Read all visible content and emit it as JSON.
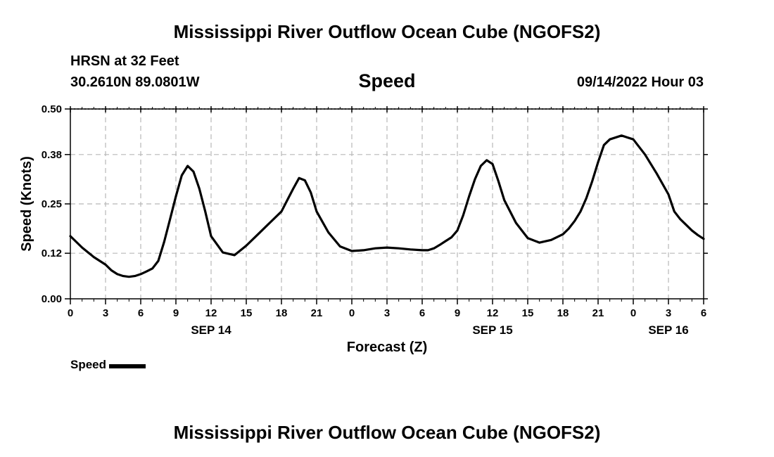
{
  "header": {
    "title": "Mississippi River Outflow Ocean Cube (NGOFS2)",
    "station": "HRSN at 32 Feet",
    "coordinates": "30.2610N  89.0801W",
    "timestamp": "09/14/2022 Hour 03"
  },
  "legend": {
    "label": "Speed"
  },
  "footer": {
    "title": "Mississippi River Outflow Ocean Cube (NGOFS2)"
  },
  "chart_data": {
    "type": "line",
    "title": "Speed",
    "xlabel": "Forecast (Z)",
    "ylabel": "Speed (Knots)",
    "ylim": [
      0,
      0.5
    ],
    "xlim": [
      0,
      54
    ],
    "y_ticks": [
      0.0,
      0.12,
      0.25,
      0.38,
      0.5
    ],
    "y_tick_labels": [
      "0.00",
      "0.12",
      "0.25",
      "0.38",
      "0.50"
    ],
    "x_ticks": [
      0,
      3,
      6,
      9,
      12,
      15,
      18,
      21,
      24,
      27,
      30,
      33,
      36,
      39,
      42,
      45,
      48,
      51,
      54
    ],
    "x_tick_labels": [
      "0",
      "3",
      "6",
      "9",
      "12",
      "15",
      "18",
      "21",
      "0",
      "3",
      "6",
      "9",
      "12",
      "15",
      "18",
      "21",
      "0",
      "3",
      "6"
    ],
    "date_labels": [
      {
        "x": 12,
        "label": "SEP 14"
      },
      {
        "x": 36,
        "label": "SEP 15"
      },
      {
        "x": 51,
        "label": "SEP 16"
      }
    ],
    "grid": true,
    "series": [
      {
        "name": "Speed",
        "x": [
          0,
          1,
          2,
          3,
          3.5,
          4,
          4.5,
          5,
          5.5,
          6,
          6.5,
          7,
          7.5,
          8,
          8.5,
          9,
          9.5,
          10,
          10.5,
          11,
          11.5,
          12,
          13,
          14,
          15,
          16,
          17,
          18,
          18.5,
          19,
          19.5,
          20,
          20.5,
          21,
          22,
          23,
          24,
          25,
          26,
          27,
          28,
          29,
          30,
          30.5,
          31,
          31.5,
          32,
          32.5,
          33,
          33.5,
          34,
          34.5,
          35,
          35.5,
          36,
          36.5,
          37,
          38,
          39,
          40,
          41,
          42,
          42.5,
          43,
          43.5,
          44,
          44.5,
          45,
          45.5,
          46,
          47,
          48,
          49,
          50,
          51,
          51.5,
          52,
          52.5,
          53,
          53.5,
          54
        ],
        "values": [
          0.165,
          0.135,
          0.11,
          0.09,
          0.075,
          0.065,
          0.06,
          0.058,
          0.06,
          0.065,
          0.072,
          0.08,
          0.1,
          0.15,
          0.21,
          0.27,
          0.325,
          0.35,
          0.335,
          0.29,
          0.23,
          0.165,
          0.122,
          0.115,
          0.14,
          0.17,
          0.2,
          0.23,
          0.26,
          0.29,
          0.318,
          0.312,
          0.28,
          0.23,
          0.175,
          0.138,
          0.126,
          0.128,
          0.133,
          0.135,
          0.133,
          0.13,
          0.128,
          0.128,
          0.133,
          0.142,
          0.152,
          0.162,
          0.18,
          0.22,
          0.27,
          0.315,
          0.35,
          0.365,
          0.355,
          0.31,
          0.26,
          0.2,
          0.16,
          0.148,
          0.155,
          0.17,
          0.185,
          0.205,
          0.23,
          0.265,
          0.31,
          0.36,
          0.405,
          0.42,
          0.43,
          0.42,
          0.38,
          0.33,
          0.275,
          0.23,
          0.21,
          0.195,
          0.18,
          0.168,
          0.158
        ]
      }
    ]
  }
}
